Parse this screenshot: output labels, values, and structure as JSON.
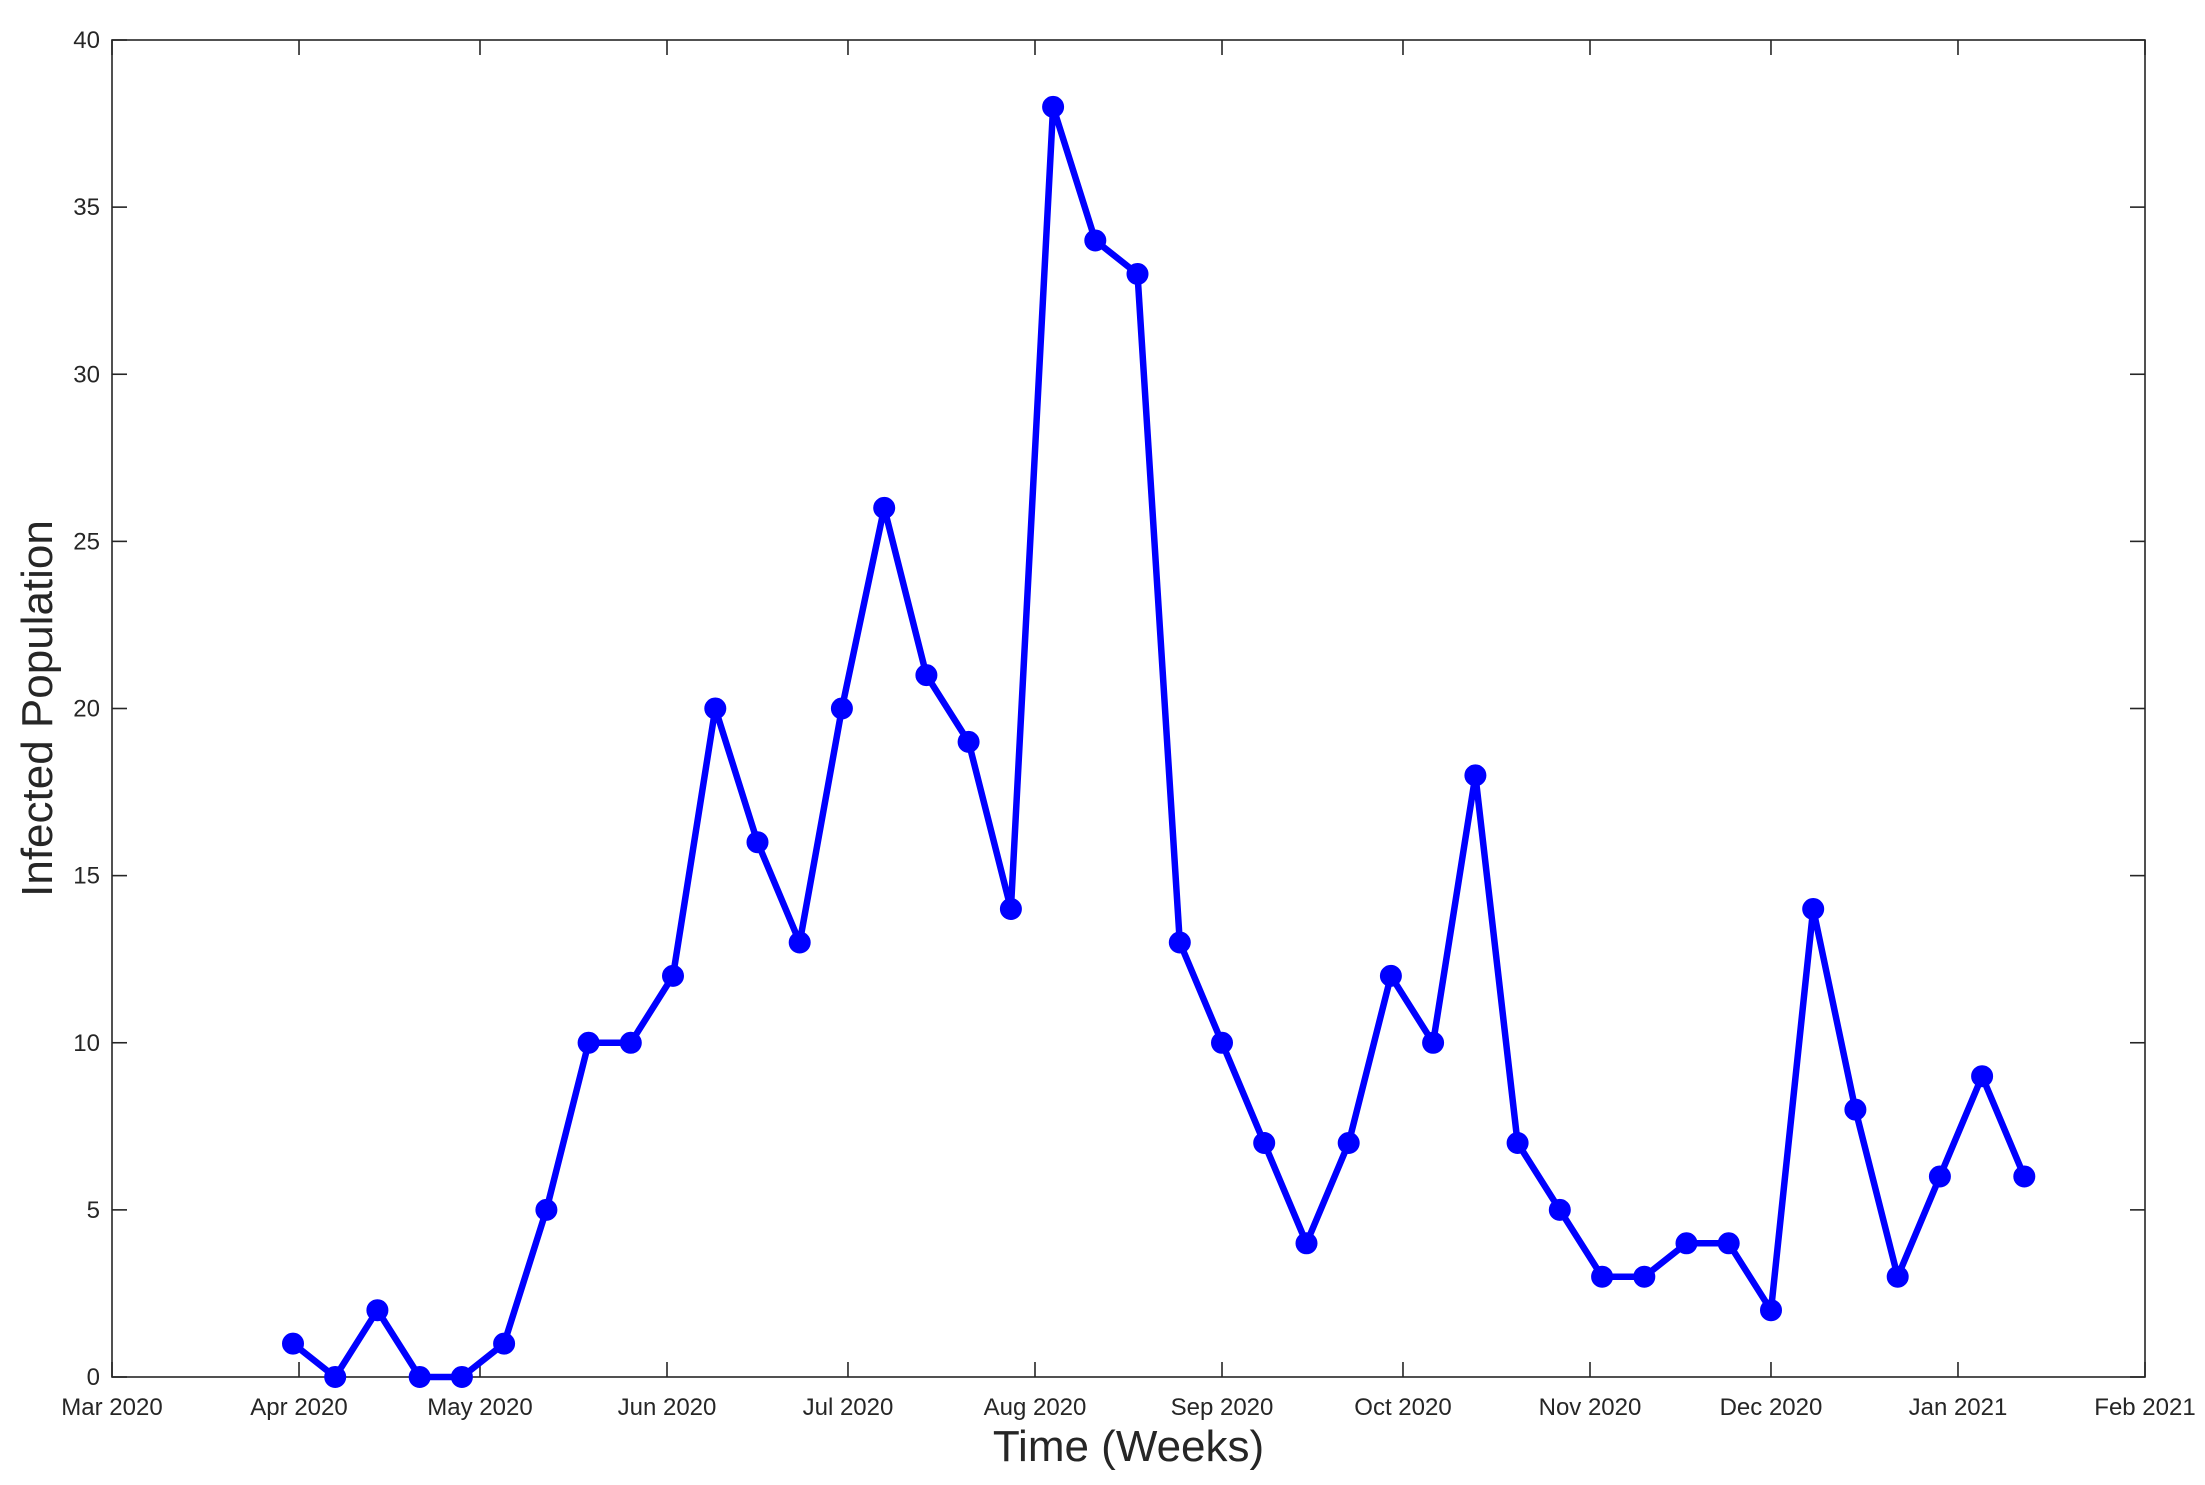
{
  "chart_data": {
    "type": "line",
    "title": "",
    "xlabel": "Time (Weeks)",
    "ylabel": "Infected Population",
    "x_tick_labels": [
      "Mar 2020",
      "Apr 2020",
      "May 2020",
      "Jun 2020",
      "Jul 2020",
      "Aug 2020",
      "Sep 2020",
      "Oct 2020",
      "Nov 2020",
      "Dec 2020",
      "Jan 2021",
      "Feb 2021"
    ],
    "x_tick_dates": [
      "2020-03-01",
      "2020-04-01",
      "2020-05-01",
      "2020-06-01",
      "2020-07-01",
      "2020-08-01",
      "2020-09-01",
      "2020-10-01",
      "2020-11-01",
      "2020-12-01",
      "2021-01-01",
      "2021-02-01"
    ],
    "xlim": [
      "2020-03-01",
      "2021-02-01"
    ],
    "ylim": [
      0,
      40
    ],
    "y_ticks": [
      0,
      5,
      10,
      15,
      20,
      25,
      30,
      35,
      40
    ],
    "grid": false,
    "series": [
      {
        "color": "#0000ff",
        "marker": "circle",
        "x": [
          "2020-03-31",
          "2020-04-07",
          "2020-04-14",
          "2020-04-21",
          "2020-04-28",
          "2020-05-05",
          "2020-05-12",
          "2020-05-19",
          "2020-05-26",
          "2020-06-02",
          "2020-06-09",
          "2020-06-16",
          "2020-06-23",
          "2020-06-30",
          "2020-07-07",
          "2020-07-14",
          "2020-07-21",
          "2020-07-28",
          "2020-08-04",
          "2020-08-11",
          "2020-08-18",
          "2020-08-25",
          "2020-09-01",
          "2020-09-08",
          "2020-09-15",
          "2020-09-22",
          "2020-09-29",
          "2020-10-06",
          "2020-10-13",
          "2020-10-20",
          "2020-10-27",
          "2020-11-03",
          "2020-11-10",
          "2020-11-17",
          "2020-11-24",
          "2020-12-01",
          "2020-12-08",
          "2020-12-15",
          "2020-12-22",
          "2020-12-29",
          "2021-01-05",
          "2021-01-12"
        ],
        "y": [
          1,
          0,
          2,
          0,
          0,
          1,
          5,
          10,
          10,
          12,
          20,
          16,
          13,
          20,
          26,
          21,
          19,
          14,
          38,
          34,
          33,
          13,
          10,
          7,
          4,
          7,
          12,
          10,
          18,
          7,
          5,
          3,
          3,
          4,
          4,
          2,
          14,
          8,
          3,
          6,
          9,
          6
        ]
      }
    ]
  }
}
